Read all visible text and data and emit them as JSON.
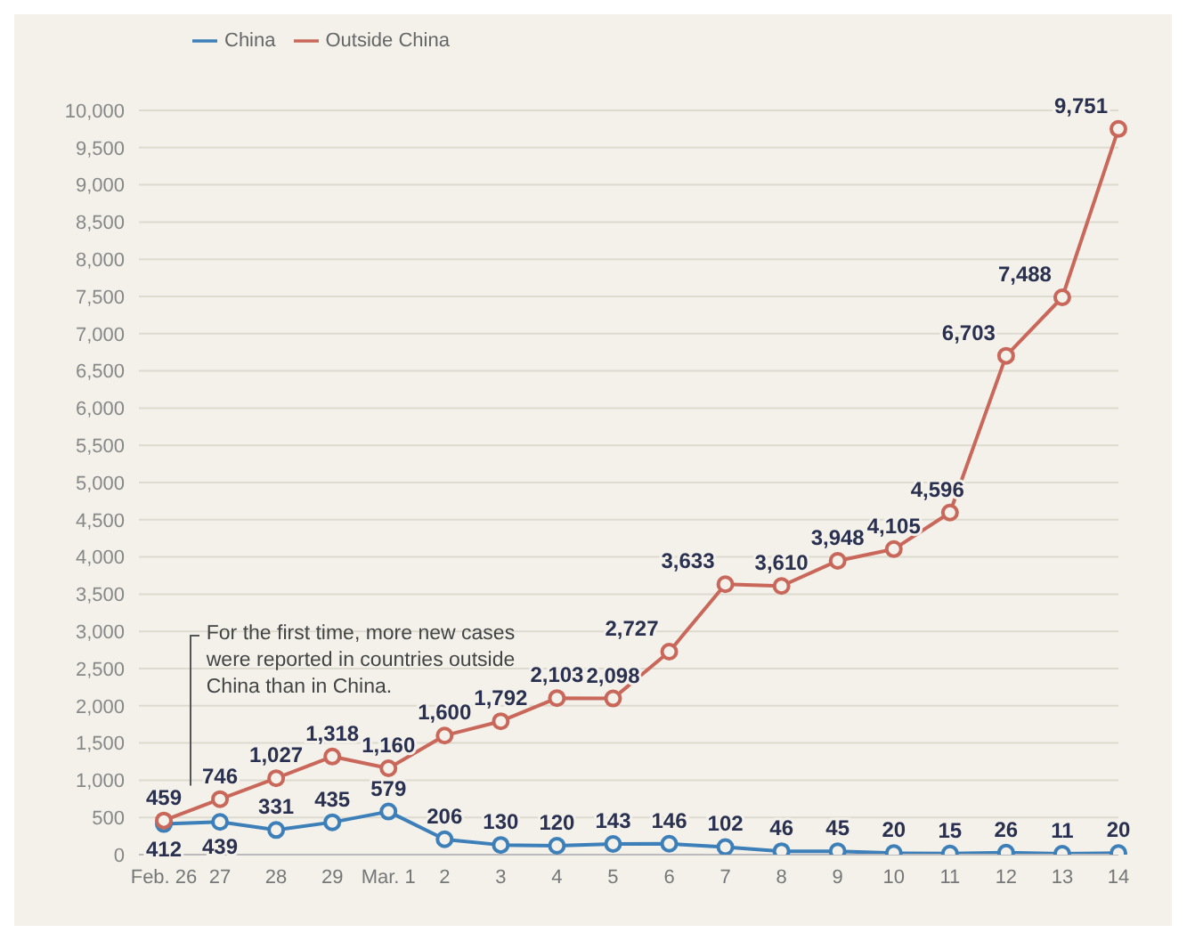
{
  "chart_data": {
    "type": "line",
    "categories": [
      "Feb. 26",
      "27",
      "28",
      "29",
      "Mar. 1",
      "2",
      "3",
      "4",
      "5",
      "6",
      "7",
      "8",
      "9",
      "10",
      "11",
      "12",
      "13",
      "14"
    ],
    "series": [
      {
        "name": "China",
        "color": "#3d7fb8",
        "values": [
          412,
          439,
          331,
          435,
          579,
          206,
          130,
          120,
          143,
          146,
          102,
          46,
          45,
          20,
          15,
          26,
          11,
          20
        ],
        "value_labels": [
          "412",
          "439",
          "331",
          "435",
          "579",
          "206",
          "130",
          "120",
          "143",
          "146",
          "102",
          "46",
          "45",
          "20",
          "15",
          "26",
          "11",
          "20"
        ]
      },
      {
        "name": "Outside China",
        "color": "#c9685a",
        "values": [
          459,
          746,
          1027,
          1318,
          1160,
          1600,
          1792,
          2103,
          2098,
          2727,
          3633,
          3610,
          3948,
          4105,
          4596,
          6703,
          7488,
          9751
        ],
        "value_labels": [
          "459",
          "746",
          "1,027",
          "1,318",
          "1,160",
          "1,600",
          "1,792",
          "2,103",
          "2,098",
          "2,727",
          "3,633",
          "3,610",
          "3,948",
          "4,105",
          "4,596",
          "6,703",
          "7,488",
          "9,751"
        ]
      }
    ],
    "ylim": [
      0,
      10000
    ],
    "yticks": [
      0,
      500,
      {
        "value": 1000,
        "label": "1,000"
      },
      {
        "value": 1500,
        "label": "1,500"
      },
      {
        "value": 2000,
        "label": "2,000"
      },
      {
        "value": 2500,
        "label": "2,500"
      },
      {
        "value": 3000,
        "label": "3,000"
      },
      {
        "value": 3500,
        "label": "3,500"
      },
      {
        "value": 4000,
        "label": "4,000"
      },
      {
        "value": 4500,
        "label": "4,500"
      },
      {
        "value": 5000,
        "label": "5,000"
      },
      {
        "value": 5500,
        "label": "5,500"
      },
      {
        "value": 6000,
        "label": "6,000"
      },
      {
        "value": 6500,
        "label": "6,500"
      },
      {
        "value": 7000,
        "label": "7,000"
      },
      {
        "value": 7500,
        "label": "7,500"
      },
      {
        "value": 8000,
        "label": "8,000"
      },
      {
        "value": 8500,
        "label": "8,500"
      },
      {
        "value": 9000,
        "label": "9,000"
      },
      {
        "value": 9500,
        "label": "9,500"
      },
      {
        "value": 10000,
        "label": "10,000"
      }
    ],
    "grid": "y",
    "legend": "top left",
    "marker": "circle",
    "line_style": "solid",
    "annotations": [
      "For the first time, more new cases were reported in countries outside China than in China."
    ]
  }
}
